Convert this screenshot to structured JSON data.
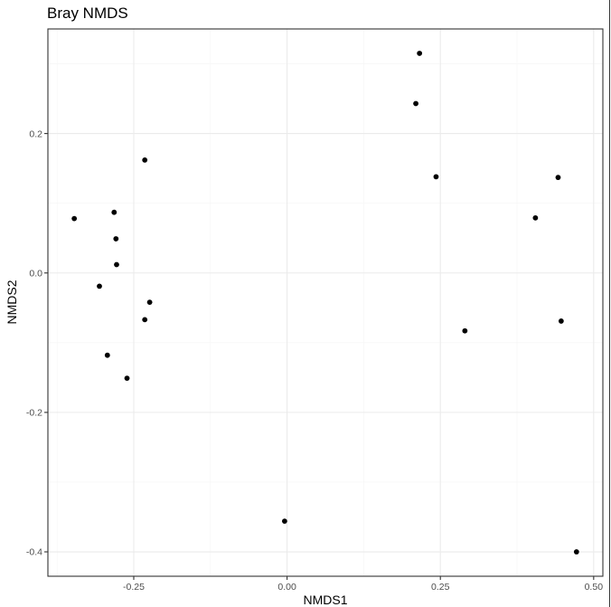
{
  "chart_data": {
    "type": "scatter",
    "title": "Bray NMDS",
    "xlabel": "NMDS1",
    "ylabel": "NMDS2",
    "xlim": [
      -0.39,
      0.515
    ],
    "ylim": [
      -0.435,
      0.35
    ],
    "x_ticks": [
      -0.25,
      0.0,
      0.25,
      0.5
    ],
    "x_tick_labels": [
      "-0.25",
      "0.00",
      "0.25",
      "0.50"
    ],
    "y_ticks": [
      -0.4,
      -0.2,
      0.0,
      0.2
    ],
    "y_tick_labels": [
      "-0.4",
      "-0.2",
      "0.0",
      "0.2"
    ],
    "x_minor": [
      -0.375,
      -0.125,
      0.125,
      0.375
    ],
    "y_minor": [
      -0.3,
      -0.1,
      0.1,
      0.3
    ],
    "grid": true,
    "marker_color": "#000000",
    "points": [
      {
        "x": 0.216,
        "y": 0.315
      },
      {
        "x": 0.21,
        "y": 0.243
      },
      {
        "x": 0.243,
        "y": 0.138
      },
      {
        "x": 0.442,
        "y": 0.137
      },
      {
        "x": 0.405,
        "y": 0.079
      },
      {
        "x": 0.447,
        "y": -0.069
      },
      {
        "x": 0.29,
        "y": -0.083
      },
      {
        "x": 0.472,
        "y": -0.4
      },
      {
        "x": -0.004,
        "y": -0.356
      },
      {
        "x": -0.232,
        "y": 0.162
      },
      {
        "x": -0.347,
        "y": 0.078
      },
      {
        "x": -0.282,
        "y": 0.087
      },
      {
        "x": -0.279,
        "y": 0.049
      },
      {
        "x": -0.278,
        "y": 0.012
      },
      {
        "x": -0.306,
        "y": -0.019
      },
      {
        "x": -0.224,
        "y": -0.042
      },
      {
        "x": -0.232,
        "y": -0.067
      },
      {
        "x": -0.293,
        "y": -0.118
      },
      {
        "x": -0.261,
        "y": -0.151
      }
    ]
  }
}
